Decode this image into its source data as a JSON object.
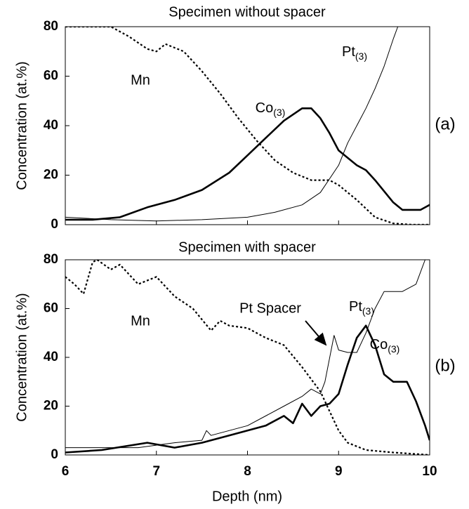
{
  "chart_data": [
    {
      "type": "line",
      "title": "Specimen without spacer",
      "ylabel": "Concentration (at.%)",
      "label": "(a)",
      "xlim": [
        6,
        10
      ],
      "xticks": [
        6,
        7,
        8,
        9,
        10
      ],
      "ylim": [
        0,
        80
      ],
      "yticks": [
        0,
        20,
        40,
        60,
        80
      ],
      "series": [
        {
          "name": "Mn",
          "color": "#000000",
          "line_style": "dotted",
          "x": [
            6.0,
            6.3,
            6.5,
            6.7,
            6.9,
            7.0,
            7.1,
            7.3,
            7.5,
            7.7,
            7.9,
            8.1,
            8.3,
            8.5,
            8.7,
            8.9,
            9.0,
            9.2,
            9.4,
            9.6,
            9.8,
            10.0
          ],
          "values": [
            80,
            80,
            80,
            76,
            71,
            70,
            73,
            70,
            62,
            53,
            43,
            34,
            26,
            21,
            18,
            18,
            16,
            10,
            3,
            0.5,
            0,
            0
          ]
        },
        {
          "name": "Co(3)",
          "color": "#000000",
          "line_style": "thick",
          "x": [
            6.0,
            6.3,
            6.6,
            6.9,
            7.2,
            7.5,
            7.8,
            8.0,
            8.2,
            8.4,
            8.6,
            8.7,
            8.8,
            8.9,
            9.0,
            9.2,
            9.3,
            9.4,
            9.6,
            9.7,
            9.9,
            10.0
          ],
          "values": [
            2,
            2,
            3,
            7,
            10,
            14,
            21,
            28,
            35,
            42,
            47,
            47,
            43,
            37,
            30,
            24,
            22,
            18,
            9,
            6,
            6,
            8
          ]
        },
        {
          "name": "Pt(3)",
          "color": "#000000",
          "line_style": "thin",
          "x": [
            6.0,
            6.5,
            7.0,
            7.5,
            8.0,
            8.3,
            8.6,
            8.8,
            9.0,
            9.1,
            9.3,
            9.4,
            9.5,
            9.6,
            9.65
          ],
          "values": [
            3,
            2,
            1.5,
            2,
            3,
            5,
            8,
            13,
            24,
            33,
            47,
            55,
            64,
            75,
            80
          ]
        }
      ]
    },
    {
      "type": "line",
      "title": "Specimen with spacer",
      "ylabel": "Concentration (at.%)",
      "xlabel": "Depth (nm)",
      "label": "(b)",
      "annotation": "Pt Spacer",
      "xlim": [
        6,
        10
      ],
      "xticks": [
        6,
        7,
        8,
        9,
        10
      ],
      "ylim": [
        0,
        80
      ],
      "yticks": [
        0,
        20,
        40,
        60,
        80
      ],
      "series": [
        {
          "name": "Mn",
          "color": "#000000",
          "line_style": "dotted",
          "x": [
            6.0,
            6.1,
            6.2,
            6.3,
            6.35,
            6.5,
            6.6,
            6.8,
            7.0,
            7.2,
            7.4,
            7.6,
            7.7,
            7.8,
            8.0,
            8.2,
            8.4,
            8.6,
            8.8,
            8.9,
            9.0,
            9.1,
            9.3,
            9.6,
            10.0
          ],
          "values": [
            73,
            70,
            66,
            79,
            80,
            76,
            78,
            70,
            73,
            65,
            60,
            51,
            55,
            53,
            52,
            48,
            45,
            36,
            26,
            18,
            10,
            5,
            2,
            1,
            0
          ]
        },
        {
          "name": "Co(3)",
          "color": "#000000",
          "line_style": "thick",
          "x": [
            6.0,
            6.4,
            6.9,
            7.2,
            7.5,
            7.8,
            8.2,
            8.4,
            8.5,
            8.6,
            8.7,
            8.8,
            8.9,
            9.0,
            9.1,
            9.2,
            9.3,
            9.4,
            9.5,
            9.6,
            9.75,
            9.85,
            9.95,
            10.0
          ],
          "values": [
            1,
            2,
            5,
            3,
            5,
            8,
            12,
            16,
            13,
            21,
            16,
            20,
            21,
            25,
            37,
            48,
            53,
            45,
            33,
            30,
            30,
            22,
            12,
            6
          ]
        },
        {
          "name": "Pt(3)",
          "color": "#000000",
          "line_style": "thin",
          "x": [
            6.0,
            6.4,
            6.8,
            7.2,
            7.5,
            7.55,
            7.6,
            8.0,
            8.4,
            8.6,
            8.7,
            8.8,
            8.85,
            8.95,
            9.0,
            9.1,
            9.2,
            9.3,
            9.4,
            9.5,
            9.7,
            9.85,
            9.95
          ],
          "values": [
            3,
            3,
            3,
            5,
            6,
            10,
            8,
            12,
            20,
            24,
            27,
            25,
            30,
            49,
            43,
            42,
            42,
            50,
            60,
            67,
            67,
            70,
            80
          ]
        }
      ]
    }
  ]
}
